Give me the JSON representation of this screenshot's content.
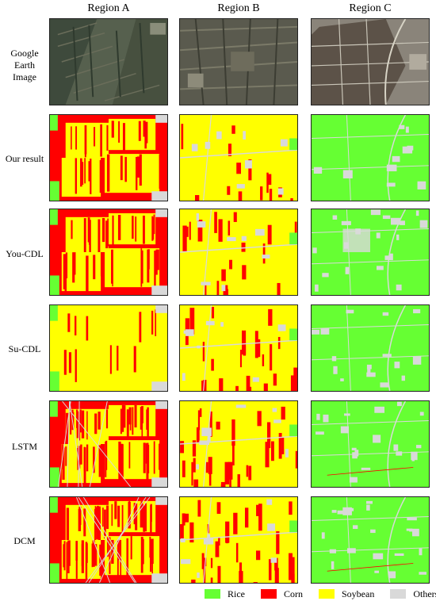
{
  "columns": [
    "Region A",
    "Region B",
    "Region C"
  ],
  "rows": {
    "google": "Google\nEarth\nImage",
    "ours": "Our result",
    "you": "You-CDL",
    "su": "Su-CDL",
    "lstm": "LSTM",
    "dcm": "DCM"
  },
  "legend": [
    {
      "label": "Rice",
      "color": "#66ff33"
    },
    {
      "label": "Corn",
      "color": "#ff0000"
    },
    {
      "label": "Soybean",
      "color": "#ffff00"
    },
    {
      "label": "Others",
      "color": "#d9d9d9"
    }
  ]
}
